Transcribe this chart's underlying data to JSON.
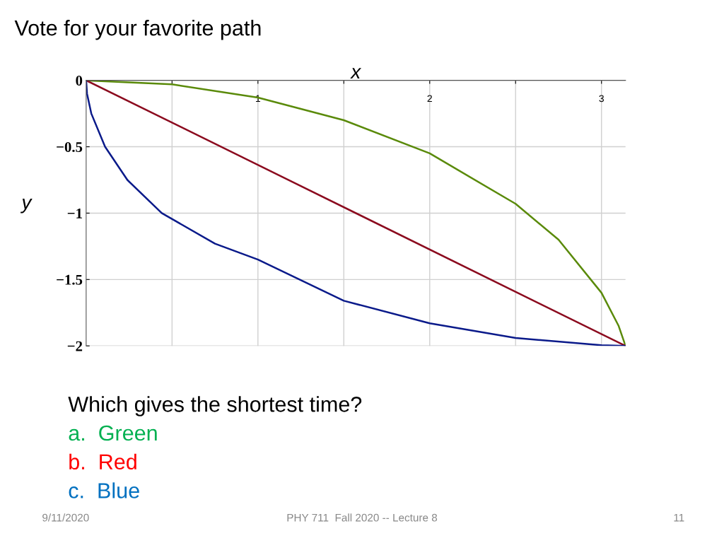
{
  "chart_data": {
    "type": "line",
    "title": "Vote for your favorite path",
    "xlabel": "x",
    "ylabel": "y",
    "x": [
      0,
      0.005,
      0.03,
      0.11,
      0.24,
      0.44,
      0.75,
      1,
      1.5,
      2,
      2.5,
      3,
      3.14
    ],
    "series": [
      {
        "color": "#5a8a0a",
        "x": [
          0,
          0.5,
          1,
          1.5,
          2,
          2.5,
          2.75,
          3,
          3.1,
          3.14
        ],
        "values": [
          0,
          -0.03,
          -0.13,
          -0.3,
          -0.55,
          -0.93,
          -1.2,
          -1.6,
          -1.85,
          -2
        ]
      },
      {
        "color": "#8b0a1e",
        "x": [
          0,
          3.14
        ],
        "values": [
          0,
          -2
        ]
      },
      {
        "color": "#0a1a8a",
        "values": [
          0,
          -0.1,
          -0.25,
          -0.5,
          -0.75,
          -1,
          -1.23,
          -1.35,
          -1.66,
          -1.83,
          -1.94,
          -1.995,
          -2
        ]
      }
    ],
    "xlim": [
      0,
      3.14
    ],
    "ylim": [
      -2,
      0
    ],
    "xticks": [
      {
        "value": 0.5,
        "label": null
      },
      1,
      {
        "value": 1.5,
        "label": null
      },
      2,
      {
        "value": 2.5,
        "label": null
      },
      3
    ],
    "yticks": [
      {
        "value": 0,
        "label": "0"
      },
      {
        "value": -0.5,
        "label": "−0.5"
      },
      {
        "value": -1,
        "label": "−1"
      },
      {
        "value": -1.5,
        "label": "−1.5"
      },
      {
        "value": -2,
        "label": "−2"
      }
    ],
    "grid": true,
    "legend": false,
    "marker": "none",
    "line_style": "solid",
    "annotations": [
      "Which gives the shortest time?",
      "a.  Green",
      "b.  Red",
      "c.  Blue",
      "9/11/2020",
      "PHY 711  Fall 2020 -- Lecture 8",
      "11"
    ]
  }
}
